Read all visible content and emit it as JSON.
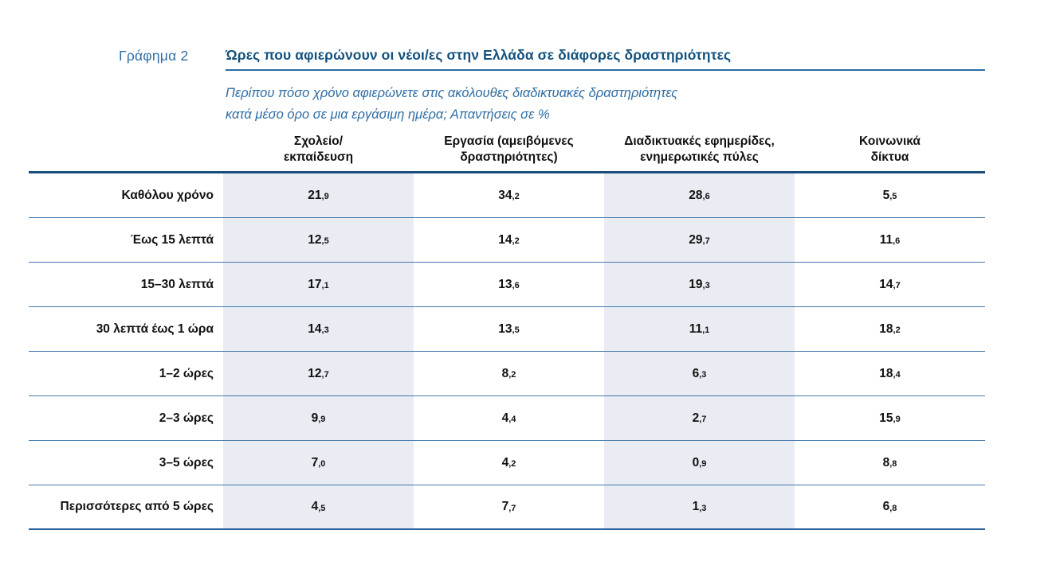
{
  "figure": {
    "label": "Γράφημα 2",
    "title": "Ώρες που αφιερώνουν οι νέοι/ες στην Ελλάδα σε διάφορες δραστηριότητες",
    "subtitle_line1": "Περίπου πόσο χρόνο αφιερώνετε στις ακόλουθες διαδικτυακές δραστηριότητες",
    "subtitle_line2": "κατά μέσο όρο σε μια εργάσιμη ημέρα; Απαντήσεις σε %"
  },
  "chart_data": {
    "type": "table",
    "title": "Ώρες που αφιερώνουν οι νέοι/ες στην Ελλάδα σε διάφορες δραστηριότητες",
    "subtitle": "Περίπου πόσο χρόνο αφιερώνετε στις ακόλουθες διαδικτυακές δραστηριότητες κατά μέσο όρο σε μια εργάσιμη ημέρα; Απαντήσεις σε %",
    "unit": "%",
    "columns": [
      "Σχολείο/\nεκπαίδευση",
      "Εργασία (αμειβόμενες\nδραστηριότητες)",
      "Διαδικτυακές εφημερίδες,\nενημερωτικές πύλες",
      "Κοινωνικά\nδίκτυα"
    ],
    "rows": [
      {
        "label": "Καθόλου χρόνο",
        "values": [
          "21,9",
          "34,2",
          "28,6",
          "5,5"
        ]
      },
      {
        "label": "Έως 15 λεπτά",
        "values": [
          "12,5",
          "14,2",
          "29,7",
          "11,6"
        ]
      },
      {
        "label": "15–30 λεπτά",
        "values": [
          "17,1",
          "13,6",
          "19,3",
          "14,7"
        ]
      },
      {
        "label": "30 λεπτά έως 1 ώρα",
        "values": [
          "14,3",
          "13,5",
          "11,1",
          "18,2"
        ]
      },
      {
        "label": "1–2 ώρες",
        "values": [
          "12,7",
          "8,2",
          "6,3",
          "18,4"
        ]
      },
      {
        "label": "2–3 ώρες",
        "values": [
          "9,9",
          "4,4",
          "2,7",
          "15,9"
        ]
      },
      {
        "label": "3–5 ώρες",
        "values": [
          "7,0",
          "4,2",
          "0,9",
          "8,8"
        ]
      },
      {
        "label": "Περισσότερες από 5 ώρες",
        "values": [
          "4,5",
          "7,7",
          "1,3",
          "6,8"
        ]
      }
    ],
    "shaded_columns": [
      0,
      2
    ],
    "colors": {
      "title_blue": "#14527e",
      "label_blue": "#2f6ea6",
      "subtitle_blue": "#2e6da4",
      "header_rule": "#1b4d7c",
      "row_rule": "#4278ad",
      "bottom_rule": "#2d62a0",
      "column_shade": "#e9edf3",
      "text": "#111111"
    }
  }
}
